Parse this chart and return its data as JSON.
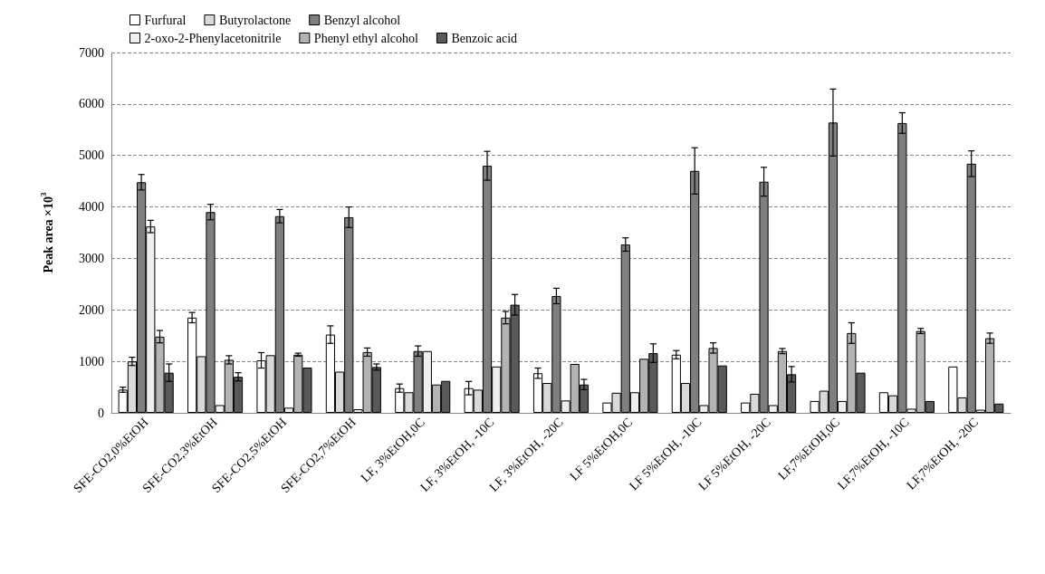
{
  "chart_data": {
    "type": "bar",
    "ylabel": "Peak area ×10$^{3}$",
    "categories": [
      "SFE-CO2,0%EtOH",
      "SFE-CO2,3%EtOH",
      "SFE-CO2,5%EtOH",
      "SFE-CO2,7%EtOH",
      "LF, 3%EtOH,0C",
      "LF, 3%EtOH, -10C",
      "LF, 3%EtOH, -20C",
      "LF 5%EtOH,0C",
      "LF 5%EtOH, -10C",
      "LF 5%EtOH, -20C",
      "LF,7%EtOH,0C",
      "LF,7%EtOH, -10C",
      "LF,7%EtOH, -20C"
    ],
    "series": [
      {
        "name": "Furfural",
        "color": "#ffffff",
        "values": [
          450,
          1850,
          1020,
          1520,
          480,
          480,
          770,
          200,
          1130,
          200,
          230,
          400,
          900
        ],
        "errors": [
          50,
          100,
          150,
          170,
          80,
          130,
          100,
          null,
          80,
          null,
          null,
          null,
          null
        ]
      },
      {
        "name": "Butyrolactone",
        "color": "#d9d9d9",
        "values": [
          1000,
          1100,
          1120,
          800,
          400,
          450,
          580,
          390,
          580,
          370,
          430,
          340,
          300
        ],
        "errors": [
          80,
          null,
          null,
          null,
          null,
          null,
          null,
          null,
          null,
          null,
          null,
          null,
          null
        ]
      },
      {
        "name": "Benzyl alcohol",
        "color": "#7f7f7f",
        "values": [
          4480,
          3900,
          3820,
          3800,
          1200,
          4800,
          2270,
          3270,
          4700,
          4490,
          5640,
          5630,
          4840
        ],
        "errors": [
          150,
          150,
          130,
          200,
          100,
          280,
          150,
          130,
          450,
          280,
          650,
          200,
          250
        ]
      },
      {
        "name": "2-oxo-2-Phenylacetonitrile",
        "color": "#efefef",
        "values": [
          3620,
          150,
          100,
          70,
          1200,
          900,
          240,
          400,
          150,
          150,
          230,
          80,
          60
        ],
        "errors": [
          120,
          null,
          null,
          null,
          null,
          null,
          null,
          null,
          null,
          null,
          null,
          null,
          null
        ]
      },
      {
        "name": "Phenyl ethyl alcohol",
        "color": "#b3b3b3",
        "values": [
          1480,
          1030,
          1130,
          1180,
          550,
          1850,
          950,
          1050,
          1260,
          1200,
          1550,
          1590,
          1450
        ],
        "errors": [
          120,
          80,
          30,
          80,
          null,
          120,
          null,
          null,
          100,
          50,
          200,
          50,
          100
        ]
      },
      {
        "name": "Benzoic acid",
        "color": "#595959",
        "values": [
          780,
          700,
          880,
          890,
          620,
          2100,
          550,
          1160,
          920,
          750,
          780,
          230,
          180
        ],
        "errors": [
          170,
          80,
          null,
          60,
          null,
          200,
          100,
          180,
          null,
          150,
          null,
          null,
          null
        ]
      }
    ],
    "ylim": [
      0,
      7000
    ],
    "yticks": [
      0,
      1000,
      2000,
      3000,
      4000,
      5000,
      6000,
      7000
    ],
    "grid": "y",
    "legend": "top"
  }
}
